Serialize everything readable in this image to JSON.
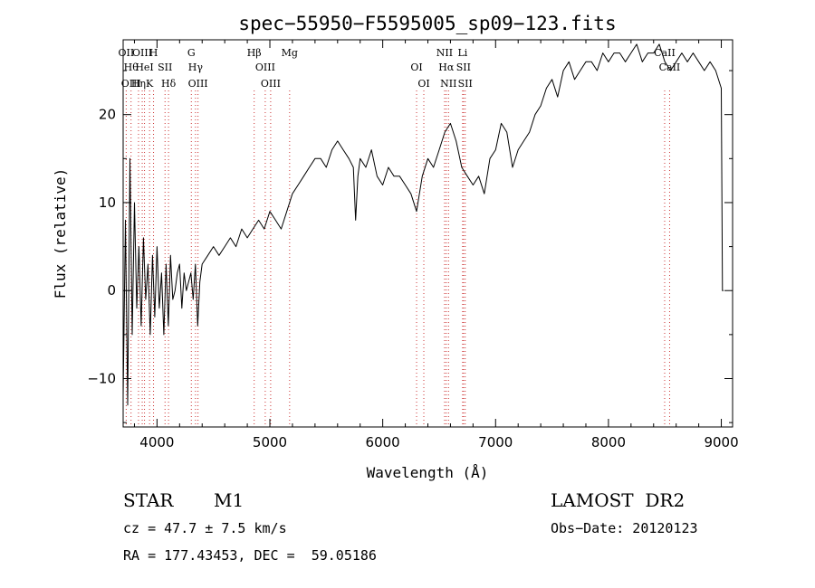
{
  "chart_data": {
    "type": "line",
    "title": "spec−55950−F5595005_sp09−123.fits",
    "xlabel": "Wavelength (Å)",
    "ylabel": "Flux (relative)",
    "xlim": [
      3700,
      9100
    ],
    "ylim": [
      -15.5,
      28.5
    ],
    "xticks": [
      4000,
      5000,
      6000,
      7000,
      8000,
      9000
    ],
    "xtick_labels": [
      "4000",
      "5000",
      "6000",
      "7000",
      "8000",
      "9000"
    ],
    "yticks": [
      -10,
      0,
      10,
      20
    ],
    "ytick_labels": [
      "−10",
      "0",
      "10",
      "20"
    ],
    "grid": false,
    "series": [
      {
        "x": [
          3700,
          3720,
          3740,
          3760,
          3780,
          3800,
          3820,
          3840,
          3860,
          3880,
          3900,
          3920,
          3940,
          3960,
          3980,
          4000,
          4020,
          4040,
          4060,
          4080,
          4100,
          4120,
          4140,
          4160,
          4180,
          4200,
          4220,
          4240,
          4260,
          4280,
          4300,
          4320,
          4340,
          4360,
          4380,
          4400,
          4450,
          4500,
          4550,
          4600,
          4650,
          4700,
          4750,
          4800,
          4850,
          4900,
          4950,
          5000,
          5050,
          5100,
          5150,
          5200,
          5250,
          5300,
          5350,
          5400,
          5450,
          5500,
          5550,
          5600,
          5650,
          5700,
          5740,
          5760,
          5780,
          5800,
          5850,
          5900,
          5950,
          6000,
          6050,
          6100,
          6150,
          6200,
          6250,
          6300,
          6350,
          6400,
          6450,
          6500,
          6550,
          6600,
          6650,
          6700,
          6750,
          6800,
          6850,
          6900,
          6950,
          7000,
          7050,
          7100,
          7150,
          7200,
          7250,
          7300,
          7350,
          7400,
          7450,
          7500,
          7550,
          7600,
          7650,
          7700,
          7750,
          7800,
          7850,
          7900,
          7950,
          8000,
          8050,
          8100,
          8150,
          8200,
          8250,
          8300,
          8350,
          8400,
          8450,
          8500,
          8550,
          8600,
          8650,
          8700,
          8750,
          8800,
          8850,
          8900,
          8950,
          9000,
          9010,
          9020
        ],
        "y": [
          -12,
          8,
          -13,
          15,
          -5,
          10,
          -2,
          5,
          -4,
          6,
          -1,
          3,
          -5,
          4,
          -3,
          5,
          -2,
          2,
          -5,
          3,
          -4,
          4,
          -1,
          0,
          2,
          3,
          -2,
          2,
          0,
          1,
          2,
          -1,
          3,
          -4,
          1,
          3,
          4,
          5,
          4,
          5,
          6,
          5,
          7,
          6,
          7,
          8,
          7,
          9,
          8,
          7,
          9,
          11,
          12,
          13,
          14,
          15,
          15,
          14,
          16,
          17,
          16,
          15,
          14,
          8,
          13,
          15,
          14,
          16,
          13,
          12,
          14,
          13,
          13,
          12,
          11,
          9,
          13,
          15,
          14,
          16,
          18,
          19,
          17,
          14,
          13,
          12,
          13,
          11,
          15,
          16,
          19,
          18,
          14,
          16,
          17,
          18,
          20,
          21,
          23,
          24,
          22,
          25,
          26,
          24,
          25,
          26,
          26,
          25,
          27,
          26,
          27,
          27,
          26,
          27,
          28,
          26,
          27,
          27,
          28,
          26,
          25,
          26,
          27,
          26,
          27,
          26,
          25,
          26,
          25,
          23,
          0,
          0
        ]
      }
    ],
    "line_annotations": [
      {
        "x": 3727,
        "labels": [
          "OII"
        ]
      },
      {
        "x": 3770,
        "labels": [
          "Hθ",
          "OIII"
        ]
      },
      {
        "x": 3836,
        "labels": [
          "Hη"
        ]
      },
      {
        "x": 3869,
        "labels": [
          "OIII"
        ]
      },
      {
        "x": 3889,
        "labels": [
          "HeI"
        ]
      },
      {
        "x": 3934,
        "labels": [
          "K"
        ]
      },
      {
        "x": 3969,
        "labels": [
          "H"
        ]
      },
      {
        "x": 4071,
        "labels": [
          "SII"
        ]
      },
      {
        "x": 4102,
        "labels": [
          "Hδ"
        ]
      },
      {
        "x": 4304,
        "labels": [
          "G"
        ]
      },
      {
        "x": 4341,
        "labels": [
          "Hγ"
        ]
      },
      {
        "x": 4363,
        "labels": [
          "OIII"
        ]
      },
      {
        "x": 4861,
        "labels": [
          "Hβ"
        ]
      },
      {
        "x": 4959,
        "labels": [
          "OIII"
        ]
      },
      {
        "x": 5007,
        "labels": [
          "OIII"
        ]
      },
      {
        "x": 5175,
        "labels": [
          "Mg"
        ]
      },
      {
        "x": 6300,
        "labels": [
          "OI"
        ]
      },
      {
        "x": 6364,
        "labels": [
          "OI"
        ]
      },
      {
        "x": 6548,
        "labels": [
          "NII"
        ]
      },
      {
        "x": 6563,
        "labels": [
          "Hα"
        ]
      },
      {
        "x": 6583,
        "labels": [
          "NII"
        ]
      },
      {
        "x": 6708,
        "labels": [
          "Li"
        ]
      },
      {
        "x": 6716,
        "labels": [
          "SII"
        ]
      },
      {
        "x": 6731,
        "labels": [
          "SII"
        ]
      },
      {
        "x": 8498,
        "labels": [
          "CaII"
        ]
      },
      {
        "x": 8542,
        "labels": [
          "CaII"
        ]
      }
    ]
  },
  "info": {
    "class": "STAR",
    "subclass": "M1",
    "survey": "LAMOST  DR2",
    "cz": "cz = 47.7 ± 7.5 km/s",
    "obs_date": "Obs−Date: 20120123",
    "radec": "RA = 177.43453, DEC =  59.05186"
  },
  "colors": {
    "line": "#000000",
    "marker": "#cc3333",
    "axis": "#000000"
  }
}
